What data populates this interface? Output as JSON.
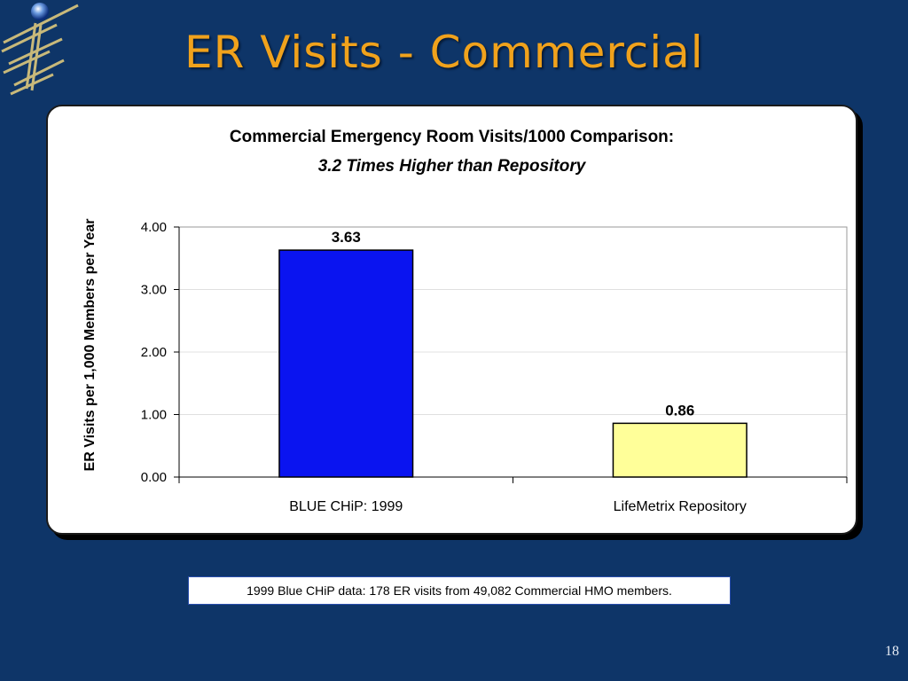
{
  "slide": {
    "title": "ER Visits - Commercial",
    "page_number": "18"
  },
  "note": "1999 Blue CHiP data:  178 ER visits from 49,082 Commercial HMO members.",
  "colors": {
    "background": "#0e3568",
    "title": "#f0a21c",
    "bar_blue_chip": "#0a14f0",
    "bar_repository": "#ffff99"
  },
  "chart_data": {
    "type": "bar",
    "title": "Commercial Emergency Room Visits/1000 Comparison:",
    "subtitle": "3.2 Times Higher than Repository",
    "xlabel": "",
    "ylabel": "ER Visits per 1,000 Members per Year",
    "categories": [
      "BLUE CHiP:  1999",
      "LifeMetrix Repository"
    ],
    "values": [
      3.63,
      0.86
    ],
    "value_labels": [
      "3.63",
      "0.86"
    ],
    "bar_colors": [
      "#0a14f0",
      "#ffff99"
    ],
    "ylim": [
      0,
      4
    ],
    "yticks": [
      "0.00",
      "1.00",
      "2.00",
      "3.00",
      "4.00"
    ],
    "grid": true,
    "legend": "none"
  }
}
